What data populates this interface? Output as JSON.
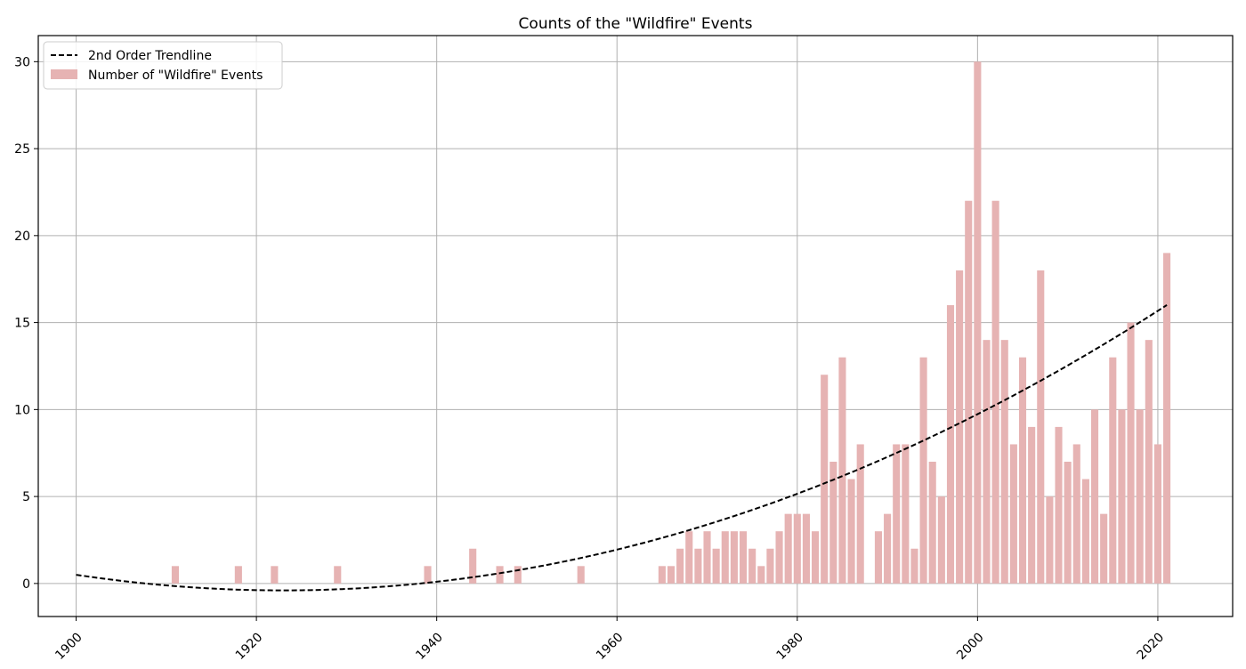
{
  "chart_data": {
    "type": "bar",
    "title": "Counts of the \"Wildfire\" Events",
    "xlabel": "",
    "ylabel": "",
    "xlim": [
      1895.5,
      1927.5
    ],
    "ylim": [
      -1.9,
      31.5
    ],
    "x_ticks": [
      1900,
      1920,
      1940,
      1960,
      1980,
      2000,
      2020
    ],
    "y_ticks": [
      0,
      5,
      10,
      15,
      20,
      25,
      30
    ],
    "grid": true,
    "legend_position": "top-left",
    "series": [
      {
        "name": "Number of \"Wildfire\" Events",
        "type": "bar",
        "color": "#e6b3b3",
        "x": [
          1911,
          1918,
          1922,
          1929,
          1939,
          1944,
          1947,
          1949,
          1956,
          1965,
          1966,
          1967,
          1968,
          1969,
          1970,
          1971,
          1972,
          1973,
          1974,
          1975,
          1976,
          1977,
          1978,
          1979,
          1980,
          1981,
          1982,
          1983,
          1984,
          1985,
          1986,
          1987,
          1989,
          1990,
          1991,
          1992,
          1993,
          1994,
          1995,
          1996,
          1997,
          1998,
          1999,
          2000,
          2001,
          2002,
          2003,
          2004,
          2005,
          2006,
          2007,
          2008,
          2009,
          2010,
          2011,
          2012,
          2013,
          2014,
          2015,
          2016,
          2017,
          2018,
          2019,
          2020,
          2021
        ],
        "values": [
          1,
          1,
          1,
          1,
          1,
          2,
          1,
          1,
          1,
          1,
          1,
          2,
          3,
          2,
          3,
          2,
          3,
          3,
          3,
          2,
          1,
          2,
          3,
          4,
          4,
          4,
          3,
          12,
          7,
          13,
          6,
          8,
          3,
          4,
          8,
          8,
          2,
          13,
          7,
          5,
          16,
          18,
          22,
          30,
          14,
          22,
          14,
          8,
          13,
          9,
          18,
          5,
          9,
          7,
          8,
          6,
          10,
          4,
          13,
          10,
          15,
          10,
          14,
          8,
          19
        ]
      },
      {
        "name": "2nd Order Trendline",
        "type": "line",
        "style": "dashed",
        "color": "#000000",
        "coefficients": [
          0.001706,
          -0.07827,
          0.5
        ],
        "x_range": [
          1900,
          2021
        ]
      }
    ]
  }
}
